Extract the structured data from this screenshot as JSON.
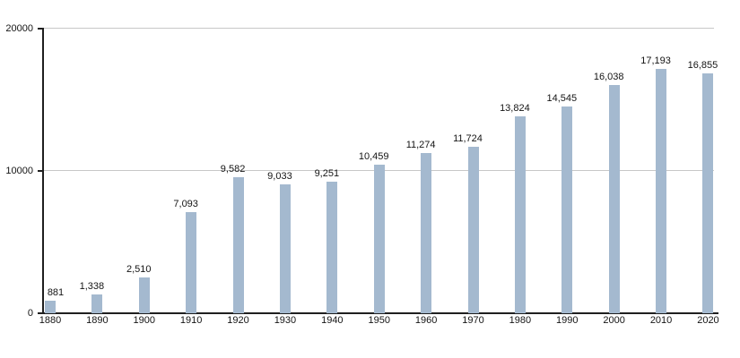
{
  "chart_data": {
    "type": "bar",
    "title": "",
    "xlabel": "",
    "ylabel": "",
    "categories": [
      "1880",
      "1890",
      "1900",
      "1910",
      "1920",
      "1930",
      "1940",
      "1950",
      "1960",
      "1970",
      "1980",
      "1990",
      "2000",
      "2010",
      "2020"
    ],
    "values": [
      881,
      1338,
      2510,
      7093,
      9582,
      9033,
      9251,
      10459,
      11274,
      11724,
      13824,
      14545,
      16038,
      17193,
      16855
    ],
    "value_labels": [
      "881",
      "1,338",
      "2,510",
      "7,093",
      "9,582",
      "9,033",
      "9,251",
      "10,459",
      "11,274",
      "11,724",
      "13,824",
      "14,545",
      "16,038",
      "17,193",
      "16,855"
    ],
    "ylim": [
      0,
      20000
    ],
    "yticks": [
      0,
      10000,
      20000
    ],
    "ytick_labels": [
      "0",
      "10000",
      "20000"
    ],
    "grid": true,
    "legend": "none",
    "colors": {
      "bar": "#a4b9cf",
      "gridline": "#c8c8c8",
      "axis": "#1f1f1f",
      "label": "#141414",
      "background": "#ffffff"
    }
  }
}
